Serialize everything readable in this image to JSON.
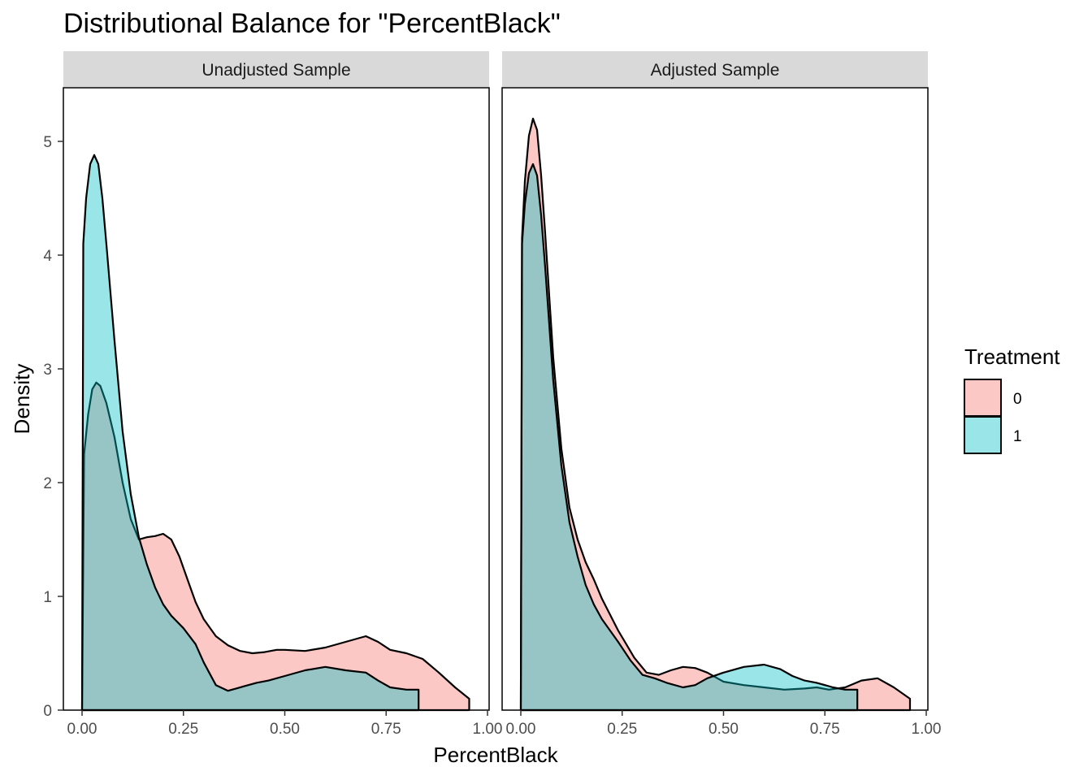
{
  "chart_data": {
    "type": "area",
    "title": "Distributional Balance for \"PercentBlack\"",
    "xlabel": "PercentBlack",
    "ylabel": "Density",
    "xlim": [
      0,
      1
    ],
    "ylim": [
      0,
      5.2
    ],
    "x_ticks": [
      "0.00",
      "0.25",
      "0.50",
      "0.75",
      "1.00"
    ],
    "y_ticks": [
      "0",
      "1",
      "2",
      "3",
      "4",
      "5"
    ],
    "grid": false,
    "legend": {
      "title": "Treatment",
      "position": "right",
      "entries": [
        {
          "label": "0",
          "color": "#F8766D"
        },
        {
          "label": "1",
          "color": "#00BFC4"
        }
      ]
    },
    "panels": [
      {
        "label": "Unadjusted Sample",
        "series": [
          {
            "name": "0",
            "color": "#F8766D",
            "x": [
              0,
              0.005,
              0.015,
              0.025,
              0.035,
              0.045,
              0.06,
              0.08,
              0.1,
              0.12,
              0.14,
              0.16,
              0.18,
              0.2,
              0.22,
              0.24,
              0.26,
              0.28,
              0.3,
              0.33,
              0.36,
              0.39,
              0.42,
              0.45,
              0.48,
              0.5,
              0.55,
              0.6,
              0.65,
              0.7,
              0.73,
              0.76,
              0.8,
              0.84,
              0.88,
              0.92,
              0.955,
              0.955
            ],
            "y": [
              0,
              2.25,
              2.6,
              2.82,
              2.88,
              2.85,
              2.7,
              2.4,
              2.0,
              1.68,
              1.5,
              1.52,
              1.53,
              1.55,
              1.5,
              1.35,
              1.15,
              0.95,
              0.8,
              0.65,
              0.57,
              0.52,
              0.5,
              0.51,
              0.53,
              0.53,
              0.52,
              0.55,
              0.6,
              0.65,
              0.6,
              0.53,
              0.5,
              0.45,
              0.33,
              0.2,
              0.1,
              0
            ]
          },
          {
            "name": "1",
            "color": "#00BFC4",
            "x": [
              0,
              0.003,
              0.01,
              0.02,
              0.03,
              0.04,
              0.05,
              0.06,
              0.08,
              0.1,
              0.12,
              0.14,
              0.16,
              0.18,
              0.2,
              0.22,
              0.25,
              0.28,
              0.3,
              0.33,
              0.36,
              0.38,
              0.4,
              0.43,
              0.46,
              0.5,
              0.55,
              0.6,
              0.65,
              0.7,
              0.73,
              0.76,
              0.8,
              0.83,
              0.83
            ],
            "y": [
              0,
              4.1,
              4.5,
              4.8,
              4.88,
              4.8,
              4.5,
              4.1,
              3.25,
              2.45,
              1.9,
              1.52,
              1.28,
              1.08,
              0.93,
              0.83,
              0.72,
              0.58,
              0.42,
              0.22,
              0.17,
              0.19,
              0.21,
              0.24,
              0.26,
              0.3,
              0.35,
              0.38,
              0.35,
              0.33,
              0.26,
              0.2,
              0.18,
              0.18,
              0
            ]
          }
        ]
      },
      {
        "label": "Adjusted Sample",
        "series": [
          {
            "name": "0",
            "color": "#F8766D",
            "x": [
              0,
              0.003,
              0.01,
              0.02,
              0.03,
              0.04,
              0.05,
              0.06,
              0.08,
              0.1,
              0.12,
              0.14,
              0.16,
              0.18,
              0.2,
              0.24,
              0.28,
              0.31,
              0.34,
              0.37,
              0.4,
              0.43,
              0.46,
              0.5,
              0.55,
              0.6,
              0.65,
              0.7,
              0.73,
              0.76,
              0.8,
              0.84,
              0.88,
              0.92,
              0.96,
              0.96
            ],
            "y": [
              0,
              4.15,
              4.65,
              5.05,
              5.2,
              5.1,
              4.7,
              4.2,
              3.1,
              2.3,
              1.78,
              1.5,
              1.3,
              1.15,
              0.98,
              0.7,
              0.46,
              0.33,
              0.31,
              0.35,
              0.38,
              0.37,
              0.33,
              0.25,
              0.22,
              0.2,
              0.18,
              0.19,
              0.2,
              0.18,
              0.2,
              0.26,
              0.28,
              0.2,
              0.1,
              0
            ]
          },
          {
            "name": "1",
            "color": "#00BFC4",
            "x": [
              0,
              0.003,
              0.01,
              0.02,
              0.03,
              0.04,
              0.05,
              0.06,
              0.08,
              0.1,
              0.12,
              0.14,
              0.16,
              0.18,
              0.2,
              0.24,
              0.27,
              0.3,
              0.33,
              0.36,
              0.4,
              0.43,
              0.46,
              0.5,
              0.55,
              0.6,
              0.64,
              0.67,
              0.7,
              0.73,
              0.77,
              0.8,
              0.83,
              0.83
            ],
            "y": [
              0,
              4.1,
              4.45,
              4.72,
              4.8,
              4.7,
              4.35,
              3.9,
              2.9,
              2.15,
              1.65,
              1.35,
              1.1,
              0.93,
              0.8,
              0.6,
              0.44,
              0.31,
              0.28,
              0.24,
              0.2,
              0.22,
              0.28,
              0.33,
              0.38,
              0.4,
              0.36,
              0.3,
              0.26,
              0.24,
              0.2,
              0.18,
              0.18,
              0
            ]
          }
        ]
      }
    ]
  }
}
